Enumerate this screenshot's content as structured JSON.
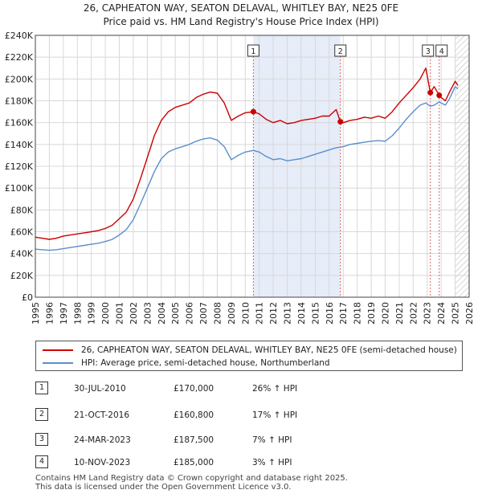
{
  "chart_data": {
    "type": "line",
    "title": "26, CAPHEATON WAY, SEATON DELAVAL, WHITLEY BAY, NE25 0FE",
    "subtitle": "Price paid vs. HM Land Registry's House Price Index (HPI)",
    "xlabel": "",
    "ylabel": "",
    "xlim": [
      1995,
      2026
    ],
    "ylim": [
      0,
      240000
    ],
    "x_ticks": [
      "1995",
      "1996",
      "1997",
      "1998",
      "1999",
      "2000",
      "2001",
      "2002",
      "2003",
      "2004",
      "2005",
      "2006",
      "2007",
      "2008",
      "2009",
      "2010",
      "2011",
      "2012",
      "2013",
      "2014",
      "2015",
      "2016",
      "2017",
      "2018",
      "2019",
      "2020",
      "2021",
      "2022",
      "2023",
      "2024",
      "2025",
      "2026"
    ],
    "y_ticks": [
      0,
      20000,
      40000,
      60000,
      80000,
      100000,
      120000,
      140000,
      160000,
      180000,
      200000,
      220000,
      240000
    ],
    "y_tick_labels": [
      "£0",
      "£20K",
      "£40K",
      "£60K",
      "£80K",
      "£100K",
      "£120K",
      "£140K",
      "£160K",
      "£180K",
      "£200K",
      "£220K",
      "£240K"
    ],
    "grid": true,
    "shaded_region": {
      "x_start": 2010.58,
      "x_end": 2016.8
    },
    "hatched_region": {
      "x_start": 2025.0,
      "x_end": 2026.0
    },
    "series": [
      {
        "name": "26, CAPHEATON WAY, SEATON DELAVAL, WHITLEY BAY, NE25 0FE (semi-detached house)",
        "color": "#cc0000",
        "x": [
          1995.0,
          1995.5,
          1996.0,
          1996.5,
          1997.0,
          1997.5,
          1998.0,
          1998.5,
          1999.0,
          1999.5,
          2000.0,
          2000.5,
          2001.0,
          2001.5,
          2002.0,
          2002.5,
          2003.0,
          2003.5,
          2004.0,
          2004.5,
          2005.0,
          2005.5,
          2006.0,
          2006.5,
          2007.0,
          2007.5,
          2008.0,
          2008.5,
          2009.0,
          2009.5,
          2010.0,
          2010.58,
          2011.0,
          2011.5,
          2012.0,
          2012.5,
          2013.0,
          2013.5,
          2014.0,
          2014.5,
          2015.0,
          2015.5,
          2016.0,
          2016.5,
          2016.8,
          2017.0,
          2017.5,
          2018.0,
          2018.5,
          2019.0,
          2019.5,
          2020.0,
          2020.5,
          2021.0,
          2021.5,
          2022.0,
          2022.5,
          2022.9,
          2023.23,
          2023.5,
          2023.86,
          2024.0,
          2024.3,
          2024.6,
          2025.0,
          2025.2
        ],
        "values": [
          55000,
          54000,
          53000,
          54000,
          56000,
          57000,
          58000,
          59000,
          60000,
          61000,
          63000,
          66000,
          72000,
          78000,
          90000,
          108000,
          128000,
          148000,
          162000,
          170000,
          174000,
          176000,
          178000,
          183000,
          186000,
          188000,
          187000,
          178000,
          162000,
          166000,
          169000,
          170000,
          168000,
          163000,
          160000,
          162000,
          159000,
          160000,
          162000,
          163000,
          164000,
          166000,
          166000,
          172000,
          160800,
          160000,
          162000,
          163000,
          165000,
          164000,
          166000,
          164000,
          170000,
          178000,
          185000,
          192000,
          200000,
          210000,
          187500,
          193000,
          185000,
          183000,
          180000,
          188000,
          198000,
          194000
        ]
      },
      {
        "name": "HPI: Average price, semi-detached house, Northumberland",
        "color": "#5b8fc9",
        "x": [
          1995.0,
          1995.5,
          1996.0,
          1996.5,
          1997.0,
          1997.5,
          1998.0,
          1998.5,
          1999.0,
          1999.5,
          2000.0,
          2000.5,
          2001.0,
          2001.5,
          2002.0,
          2002.5,
          2003.0,
          2003.5,
          2004.0,
          2004.5,
          2005.0,
          2005.5,
          2006.0,
          2006.5,
          2007.0,
          2007.5,
          2008.0,
          2008.5,
          2009.0,
          2009.5,
          2010.0,
          2010.58,
          2011.0,
          2011.5,
          2012.0,
          2012.5,
          2013.0,
          2013.5,
          2014.0,
          2014.5,
          2015.0,
          2015.5,
          2016.0,
          2016.5,
          2016.8,
          2017.0,
          2017.5,
          2018.0,
          2018.5,
          2019.0,
          2019.5,
          2020.0,
          2020.5,
          2021.0,
          2021.5,
          2022.0,
          2022.5,
          2022.9,
          2023.23,
          2023.5,
          2023.86,
          2024.0,
          2024.3,
          2024.6,
          2025.0,
          2025.2
        ],
        "values": [
          44000,
          43500,
          43000,
          43500,
          44500,
          45500,
          46500,
          47500,
          48500,
          49500,
          51000,
          53000,
          57000,
          62000,
          71000,
          85000,
          100000,
          115000,
          127000,
          133000,
          136000,
          138000,
          140000,
          143000,
          145000,
          146000,
          144000,
          138000,
          126000,
          130000,
          133000,
          134500,
          133000,
          129000,
          126000,
          127000,
          125000,
          126000,
          127000,
          129000,
          131000,
          133000,
          135000,
          137000,
          137500,
          138000,
          140000,
          141000,
          142000,
          143000,
          143500,
          143000,
          148000,
          155000,
          163000,
          170000,
          176000,
          178000,
          175000,
          176000,
          179000,
          178000,
          176000,
          182000,
          193000,
          191000
        ]
      }
    ],
    "sales": [
      {
        "id": "1",
        "x": 2010.58,
        "value": 170000
      },
      {
        "id": "2",
        "x": 2016.8,
        "value": 160800
      },
      {
        "id": "3",
        "x": 2023.23,
        "value": 187500
      },
      {
        "id": "4",
        "x": 2023.86,
        "value": 185000
      }
    ]
  },
  "legend": {
    "property_label": "26, CAPHEATON WAY, SEATON DELAVAL, WHITLEY BAY, NE25 0FE (semi-detached house)",
    "hpi_label": "HPI: Average price, semi-detached house, Northumberland",
    "property_color": "#cc0000",
    "hpi_color": "#5b8fc9"
  },
  "sales_table": [
    {
      "id": "1",
      "date": "30-JUL-2010",
      "price": "£170,000",
      "hpi": "26% ↑ HPI"
    },
    {
      "id": "2",
      "date": "21-OCT-2016",
      "price": "£160,800",
      "hpi": "17% ↑ HPI"
    },
    {
      "id": "3",
      "date": "24-MAR-2023",
      "price": "£187,500",
      "hpi": "7% ↑ HPI"
    },
    {
      "id": "4",
      "date": "10-NOV-2023",
      "price": "£185,000",
      "hpi": "3% ↑ HPI"
    }
  ],
  "footer": {
    "line1": "Contains HM Land Registry data © Crown copyright and database right 2025.",
    "line2": "This data is licensed under the Open Government Licence v3.0."
  }
}
